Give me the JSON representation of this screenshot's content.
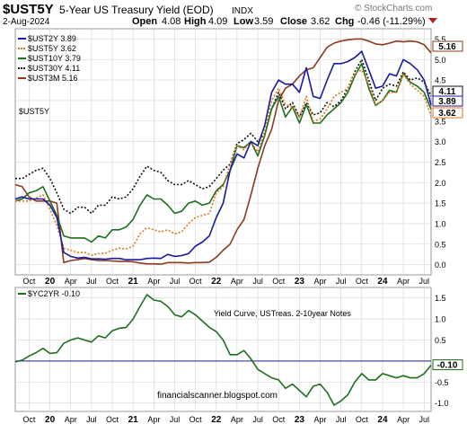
{
  "header": {
    "symbol": "$UST5Y",
    "description": "5-Year US Treasury Yield (EOD)",
    "exchange": "INDX",
    "date": "2-Aug-2024",
    "open_label": "Open",
    "open": "4.08",
    "high_label": "High",
    "high": "4.09",
    "low_label": "Low",
    "low": "3.59",
    "close_label": "Close",
    "close": "3.62",
    "chg_label": "Chg",
    "chg": "-0.46 (-11.29%)",
    "watermark": "© StockCharts.com"
  },
  "colors": {
    "UST2Y": "#1a1aa0",
    "UST5Y": "#e0761a",
    "UST10Y": "#1e6e1e",
    "UST30Y": "#111111",
    "UST3M": "#8b3a1e",
    "YC2YR": "#1e6e1e",
    "zero_line": "#1a1aa0",
    "grid": "#d4d4d4",
    "down_arrow": "#b22222"
  },
  "chart_data": [
    {
      "type": "line",
      "title": "$UST5Y",
      "ylim": [
        -0.25,
        5.75
      ],
      "y_ticks": [
        "0.0",
        "0.5",
        "1.0",
        "1.5",
        "2.0",
        "2.5",
        "3.0",
        "3.5",
        "4.0",
        "4.5",
        "5.0",
        "5.5"
      ],
      "x_ticks": [
        "Oct",
        "20",
        "Apr",
        "Jul",
        "Oct",
        "21",
        "Apr",
        "Jul",
        "Oct",
        "22",
        "Apr",
        "Jul",
        "Oct",
        "23",
        "Apr",
        "Jul",
        "Oct",
        "24",
        "Apr",
        "Jul"
      ],
      "x_range": [
        "2019-08",
        "2024-08"
      ],
      "legend": [
        "$UST2Y 3.89",
        "$UST5Y 3.62",
        "$UST10Y 3.79",
        "$UST30Y 4.11",
        "$UST3M 5.16"
      ],
      "last_value_tags": [
        "5.16",
        "4.11",
        "3.89",
        "3.62"
      ],
      "x": [
        "2019-08",
        "2019-09",
        "2019-10",
        "2019-11",
        "2019-12",
        "2020-01",
        "2020-02",
        "2020-03",
        "2020-04",
        "2020-05",
        "2020-06",
        "2020-07",
        "2020-08",
        "2020-09",
        "2020-10",
        "2020-11",
        "2020-12",
        "2021-01",
        "2021-02",
        "2021-03",
        "2021-04",
        "2021-05",
        "2021-06",
        "2021-07",
        "2021-08",
        "2021-09",
        "2021-10",
        "2021-11",
        "2021-12",
        "2022-01",
        "2022-02",
        "2022-03",
        "2022-04",
        "2022-05",
        "2022-06",
        "2022-07",
        "2022-08",
        "2022-09",
        "2022-10",
        "2022-11",
        "2022-12",
        "2023-01",
        "2023-02",
        "2023-03",
        "2023-04",
        "2023-05",
        "2023-06",
        "2023-07",
        "2023-08",
        "2023-09",
        "2023-10",
        "2023-11",
        "2023-12",
        "2024-01",
        "2024-02",
        "2024-03",
        "2024-04",
        "2024-05",
        "2024-06",
        "2024-07",
        "2024-08"
      ],
      "series": [
        {
          "name": "$UST3M",
          "values": [
            1.95,
            1.9,
            1.65,
            1.55,
            1.55,
            1.55,
            1.5,
            0.05,
            0.1,
            0.12,
            0.15,
            0.12,
            0.1,
            0.1,
            0.09,
            0.08,
            0.08,
            0.07,
            0.04,
            0.02,
            0.02,
            0.01,
            0.05,
            0.05,
            0.05,
            0.04,
            0.05,
            0.05,
            0.06,
            0.18,
            0.35,
            0.5,
            0.85,
            1.1,
            1.7,
            2.35,
            2.9,
            3.3,
            4.0,
            4.3,
            4.4,
            4.6,
            4.75,
            4.8,
            5.05,
            5.3,
            5.4,
            5.45,
            5.48,
            5.5,
            5.5,
            5.45,
            5.38,
            5.36,
            5.4,
            5.45,
            5.43,
            5.45,
            5.43,
            5.36,
            5.16
          ]
        },
        {
          "name": "$UST30Y",
          "values": [
            2.1,
            2.1,
            2.2,
            2.3,
            2.35,
            2.1,
            1.75,
            1.35,
            1.25,
            1.4,
            1.4,
            1.25,
            1.45,
            1.45,
            1.65,
            1.6,
            1.65,
            1.85,
            2.15,
            2.4,
            2.3,
            2.25,
            2.05,
            1.95,
            1.95,
            2.05,
            1.95,
            1.85,
            1.9,
            2.1,
            2.3,
            2.45,
            2.95,
            3.05,
            3.2,
            3.0,
            3.2,
            3.8,
            4.2,
            3.8,
            3.95,
            3.6,
            3.95,
            3.65,
            3.7,
            3.95,
            3.85,
            4.0,
            4.3,
            4.7,
            5.0,
            4.5,
            4.0,
            4.3,
            4.4,
            4.35,
            4.7,
            4.5,
            4.55,
            4.45,
            4.11
          ]
        },
        {
          "name": "$UST10Y",
          "values": [
            1.55,
            1.6,
            1.75,
            1.8,
            1.9,
            1.55,
            1.2,
            0.7,
            0.65,
            0.65,
            0.65,
            0.55,
            0.7,
            0.65,
            0.85,
            0.85,
            0.92,
            1.1,
            1.45,
            1.7,
            1.6,
            1.6,
            1.45,
            1.25,
            1.3,
            1.5,
            1.55,
            1.45,
            1.5,
            1.8,
            1.95,
            2.3,
            2.9,
            2.85,
            3.0,
            2.65,
            3.15,
            3.8,
            4.1,
            3.6,
            3.85,
            3.45,
            3.9,
            3.45,
            3.45,
            3.65,
            3.8,
            3.95,
            4.2,
            4.6,
            4.9,
            4.3,
            3.88,
            4.0,
            4.25,
            4.2,
            4.65,
            4.45,
            4.35,
            4.2,
            3.79
          ]
        },
        {
          "name": "$UST5Y",
          "values": [
            1.55,
            1.55,
            1.55,
            1.62,
            1.7,
            1.35,
            0.95,
            0.4,
            0.35,
            0.3,
            0.3,
            0.23,
            0.27,
            0.28,
            0.35,
            0.4,
            0.38,
            0.45,
            0.75,
            0.9,
            0.85,
            0.8,
            0.85,
            0.75,
            0.8,
            1.0,
            1.15,
            1.2,
            1.25,
            1.75,
            1.9,
            2.45,
            2.9,
            2.8,
            3.0,
            2.75,
            3.25,
            4.0,
            4.3,
            3.9,
            3.85,
            3.6,
            4.1,
            3.5,
            3.55,
            3.8,
            4.1,
            4.2,
            4.3,
            4.65,
            4.75,
            4.4,
            3.9,
            4.0,
            4.2,
            4.2,
            4.65,
            4.4,
            4.25,
            4.1,
            3.62
          ]
        },
        {
          "name": "$UST2Y",
          "values": [
            1.6,
            1.65,
            1.6,
            1.6,
            1.6,
            1.45,
            1.15,
            0.3,
            0.2,
            0.16,
            0.18,
            0.14,
            0.14,
            0.13,
            0.15,
            0.15,
            0.12,
            0.12,
            0.12,
            0.15,
            0.16,
            0.15,
            0.25,
            0.2,
            0.22,
            0.27,
            0.45,
            0.55,
            0.7,
            1.15,
            1.5,
            2.3,
            2.7,
            2.6,
            3.0,
            2.9,
            3.4,
            4.2,
            4.5,
            4.4,
            4.4,
            4.2,
            4.8,
            4.1,
            4.05,
            4.5,
            4.9,
            4.9,
            4.95,
            5.05,
            5.2,
            4.75,
            4.3,
            4.35,
            4.65,
            4.6,
            5.0,
            4.9,
            4.75,
            4.5,
            3.89
          ]
        }
      ]
    },
    {
      "type": "line",
      "title": "$YC2YR",
      "ylim": [
        -1.2,
        1.75
      ],
      "y_ticks": [
        "1.5",
        "1.0",
        "0.5",
        "-0.5",
        "-1.0"
      ],
      "x_ticks": [
        "Oct",
        "20",
        "Apr",
        "Jul",
        "Oct",
        "21",
        "Apr",
        "Jul",
        "Oct",
        "22",
        "Apr",
        "Jul",
        "Oct",
        "23",
        "Apr",
        "Jul",
        "Oct",
        "24",
        "Apr",
        "Jul"
      ],
      "legend": [
        "$YC2YR -0.10"
      ],
      "annotation": "Yield Curve, USTreas. 2-10year Notes",
      "last_value_tag": "-0.10",
      "reference_line": 0,
      "x": [
        "2019-08",
        "2019-09",
        "2019-10",
        "2019-11",
        "2019-12",
        "2020-01",
        "2020-02",
        "2020-03",
        "2020-04",
        "2020-05",
        "2020-06",
        "2020-07",
        "2020-08",
        "2020-09",
        "2020-10",
        "2020-11",
        "2020-12",
        "2021-01",
        "2021-02",
        "2021-03",
        "2021-04",
        "2021-05",
        "2021-06",
        "2021-07",
        "2021-08",
        "2021-09",
        "2021-10",
        "2021-11",
        "2021-12",
        "2022-01",
        "2022-02",
        "2022-03",
        "2022-04",
        "2022-05",
        "2022-06",
        "2022-07",
        "2022-08",
        "2022-09",
        "2022-10",
        "2022-11",
        "2022-12",
        "2023-01",
        "2023-02",
        "2023-03",
        "2023-04",
        "2023-05",
        "2023-06",
        "2023-07",
        "2023-08",
        "2023-09",
        "2023-10",
        "2023-11",
        "2023-12",
        "2024-01",
        "2024-02",
        "2024-03",
        "2024-04",
        "2024-05",
        "2024-06",
        "2024-07",
        "2024-08"
      ],
      "series": [
        {
          "name": "$YC2YR",
          "values": [
            -0.02,
            0.02,
            0.12,
            0.2,
            0.3,
            0.18,
            0.2,
            0.42,
            0.5,
            0.55,
            0.5,
            0.45,
            0.6,
            0.55,
            0.72,
            0.78,
            0.8,
            1.0,
            1.3,
            1.58,
            1.45,
            1.42,
            1.3,
            1.1,
            1.05,
            1.2,
            1.1,
            0.95,
            0.8,
            0.7,
            0.5,
            0.15,
            0.15,
            0.25,
            0.05,
            -0.2,
            -0.3,
            -0.4,
            -0.45,
            -0.65,
            -0.55,
            -0.7,
            -0.85,
            -0.6,
            -0.55,
            -0.75,
            -1.05,
            -0.95,
            -0.8,
            -0.5,
            -0.3,
            -0.45,
            -0.45,
            -0.3,
            -0.35,
            -0.4,
            -0.35,
            -0.4,
            -0.4,
            -0.3,
            -0.1
          ]
        }
      ]
    }
  ],
  "footer": {
    "credit": "financialscanner.blogspot.com"
  }
}
